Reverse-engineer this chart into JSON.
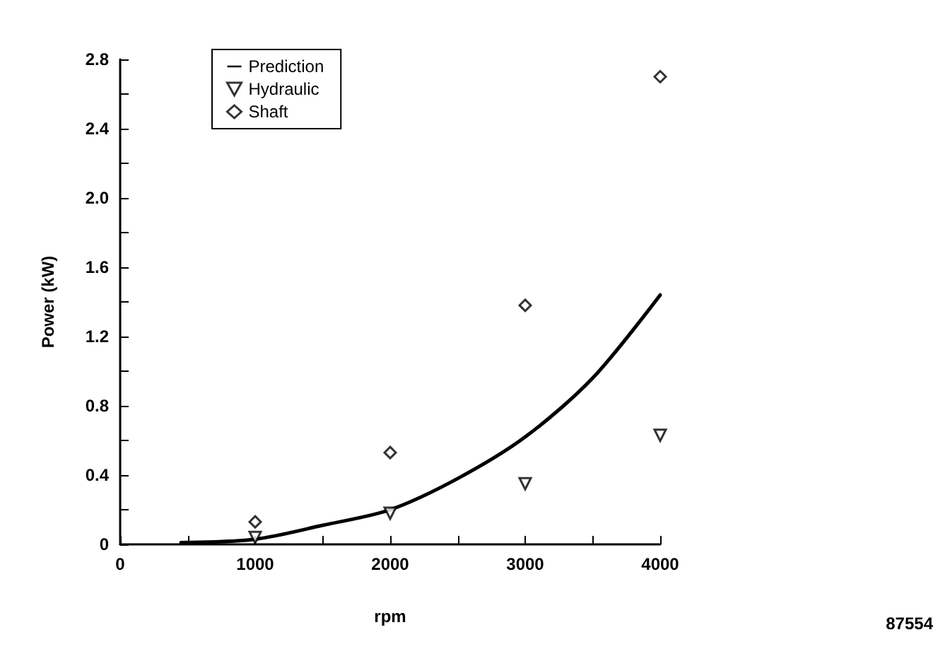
{
  "chart_data": {
    "type": "scatter",
    "xlabel": "rpm",
    "ylabel": "Power (kW)",
    "xlim": [
      0,
      4000
    ],
    "ylim": [
      0,
      2.8
    ],
    "xticks": [
      0,
      {
        "value": 500,
        "label": null
      },
      1000,
      {
        "value": 1500,
        "label": null
      },
      2000,
      {
        "value": 2500,
        "label": null
      },
      3000,
      {
        "value": 3500,
        "label": null
      },
      4000
    ],
    "yticks": [
      0,
      {
        "value": 0.2,
        "label": null
      },
      0.4,
      {
        "value": 0.6,
        "label": null
      },
      0.8,
      {
        "value": 1.0,
        "label": null
      },
      1.2,
      {
        "value": 1.4,
        "label": null
      },
      1.6,
      {
        "value": 1.8,
        "label": null
      },
      {
        "value": 2,
        "label": "2.0"
      },
      {
        "value": 2.2,
        "label": null
      },
      2.4,
      {
        "value": 2.6,
        "label": null
      },
      2.8
    ],
    "series": [
      {
        "name": "Prediction",
        "type": "line",
        "color": "#000000",
        "marker": "none",
        "line_style": "solid",
        "x": [
          450,
          1000,
          1500,
          2000,
          2500,
          3000,
          3500,
          4000
        ],
        "values": [
          0.01,
          0.03,
          0.11,
          0.2,
          0.38,
          0.62,
          0.96,
          1.44
        ]
      },
      {
        "name": "Hydraulic",
        "type": "scatter",
        "color": "#000000",
        "marker": "triangle",
        "x": [
          1000,
          2000,
          3000,
          4000
        ],
        "values": [
          0.04,
          0.18,
          0.35,
          0.63
        ]
      },
      {
        "name": "Shaft",
        "type": "scatter",
        "color": "#000000",
        "marker": "diamond",
        "x": [
          1000,
          2000,
          3000,
          4000
        ],
        "values": [
          0.13,
          0.53,
          1.38,
          2.7
        ]
      }
    ],
    "legend": "top left",
    "grid": false,
    "annotations": [
      "87554"
    ]
  }
}
